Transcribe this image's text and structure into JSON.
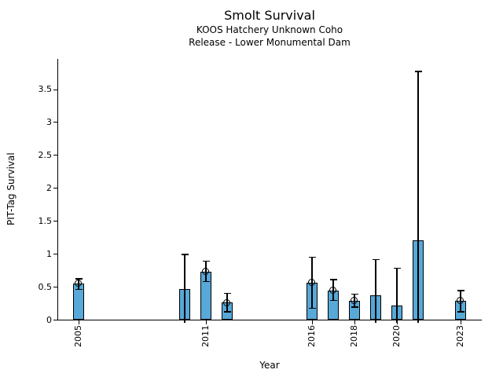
{
  "chart_data": {
    "type": "bar",
    "title": "Smolt Survival",
    "subtitle_line1": "KOOS Hatchery Unknown Coho",
    "subtitle_line2": "Release - Lower Monumental Dam",
    "xlabel": "Year",
    "ylabel": "PIT-Tag Survival",
    "xlim": [
      2004,
      2024
    ],
    "ylim": [
      0,
      3.96
    ],
    "yticks": [
      0,
      0.5,
      1,
      1.5,
      2,
      2.5,
      3,
      3.5
    ],
    "ytick_labels": [
      "0",
      "0.5",
      "1",
      "1.5",
      "2",
      "2.5",
      "3",
      "3.5"
    ],
    "xticks": [
      2005,
      2011,
      2016,
      2018,
      2020,
      2023
    ],
    "bar_width_years": 0.5,
    "grid": false,
    "legend": "none",
    "colors": {
      "bar_fill": "#58A8D8",
      "bar_edge": "#000000",
      "error_bar": "#000000",
      "text": "#000000",
      "background": "#FFFFFF"
    },
    "bars": [
      {
        "year": 2005,
        "value": 0.55,
        "ci_low": 0.46,
        "ci_high": 0.62,
        "marker": true,
        "ci_low_clipped": false
      },
      {
        "year": 2010,
        "value": 0.46,
        "ci_low": 0,
        "ci_high": 0.99,
        "marker": false,
        "ci_low_clipped": true
      },
      {
        "year": 2011,
        "value": 0.73,
        "ci_low": 0.58,
        "ci_high": 0.89,
        "marker": true,
        "ci_low_clipped": false
      },
      {
        "year": 2012,
        "value": 0.26,
        "ci_low": 0.12,
        "ci_high": 0.4,
        "marker": true,
        "ci_low_clipped": false
      },
      {
        "year": 2016,
        "value": 0.56,
        "ci_low": 0.17,
        "ci_high": 0.95,
        "marker": true,
        "ci_low_clipped": false
      },
      {
        "year": 2017,
        "value": 0.44,
        "ci_low": 0.29,
        "ci_high": 0.61,
        "marker": true,
        "ci_low_clipped": false
      },
      {
        "year": 2018,
        "value": 0.29,
        "ci_low": 0.19,
        "ci_high": 0.39,
        "marker": true,
        "ci_low_clipped": false
      },
      {
        "year": 2019,
        "value": 0.37,
        "ci_low": 0,
        "ci_high": 0.91,
        "marker": false,
        "ci_low_clipped": true
      },
      {
        "year": 2020,
        "value": 0.21,
        "ci_low": 0,
        "ci_high": 0.78,
        "marker": false,
        "ci_low_clipped": true
      },
      {
        "year": 2021,
        "value": 1.21,
        "ci_low": 0,
        "ci_high": 3.77,
        "marker": false,
        "ci_low_clipped": true
      },
      {
        "year": 2023,
        "value": 0.29,
        "ci_low": 0.12,
        "ci_high": 0.44,
        "marker": true,
        "ci_low_clipped": false
      }
    ]
  }
}
